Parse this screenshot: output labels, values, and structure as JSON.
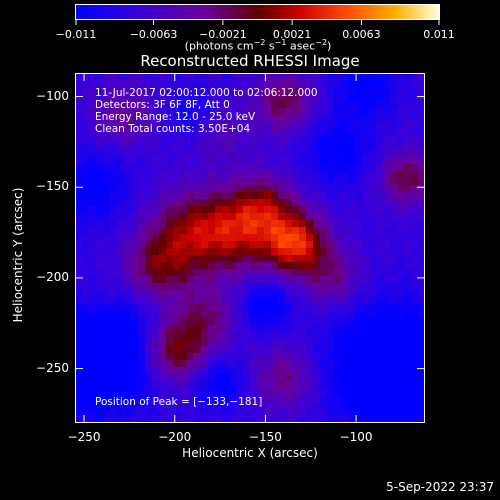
{
  "chart_data": {
    "type": "heatmap",
    "title": "Reconstructed RHESSI Image",
    "xlabel": "Heliocentric X (arcsec)",
    "ylabel": "Heliocentric Y (arcsec)",
    "xlim": [
      -255,
      -62
    ],
    "ylim": [
      -280,
      -87
    ],
    "x_ticks": [
      "−250",
      "−200",
      "−150",
      "−100"
    ],
    "x_tick_values": [
      -250,
      -200,
      -150,
      -100
    ],
    "y_ticks": [
      "−100",
      "−150",
      "−200",
      "−250"
    ],
    "y_tick_values": [
      -100,
      -150,
      -200,
      -250
    ],
    "colorbar": {
      "range": [
        -0.011,
        0.011
      ],
      "ticks": [
        "−0.011",
        "−0.0063",
        "−0.0021",
        "0.0021",
        "0.0063",
        "0.011"
      ],
      "tick_values": [
        -0.011,
        -0.0063,
        -0.0021,
        0.0021,
        0.0063,
        0.011
      ],
      "unit_prefix": "(photons cm",
      "unit_exp1": "−2",
      "unit_mid": " s",
      "unit_exp2": "−1",
      "unit_mid2": " asec",
      "unit_exp3": "−2",
      "unit_suffix": ")"
    },
    "info_lines": [
      "11-Jul-2017 02:00:12.000 to 02:06:12.000",
      "Detectors: 3F 6F 8F, Att 0",
      "Energy Range: 12.0 - 25.0 keV",
      "Clean     Total counts: 3.50E+04"
    ],
    "peak_label": "Position of Peak = [−133,−181]",
    "peak": {
      "x": -133,
      "y": -181
    },
    "sources": [
      {
        "x": -133,
        "y": -181,
        "amp": 0.011,
        "sigma": 12
      },
      {
        "x": -165,
        "y": -174,
        "amp": 0.008,
        "sigma": 16
      },
      {
        "x": -192,
        "y": -175,
        "amp": 0.0072,
        "sigma": 16
      },
      {
        "x": -210,
        "y": -195,
        "amp": 0.0062,
        "sigma": 13
      },
      {
        "x": -200,
        "y": -240,
        "amp": 0.008,
        "sigma": 12
      },
      {
        "x": -183,
        "y": -222,
        "amp": 0.005,
        "sigma": 12
      },
      {
        "x": -150,
        "y": -160,
        "amp": 0.0055,
        "sigma": 12
      },
      {
        "x": -113,
        "y": -200,
        "amp": 0.0045,
        "sigma": 11
      },
      {
        "x": -140,
        "y": -103,
        "amp": 0.0062,
        "sigma": 11
      },
      {
        "x": -72,
        "y": -145,
        "amp": 0.0065,
        "sigma": 10
      },
      {
        "x": -228,
        "y": -110,
        "amp": 0.004,
        "sigma": 12
      },
      {
        "x": -140,
        "y": -255,
        "amp": 0.0048,
        "sigma": 12
      },
      {
        "x": -245,
        "y": -215,
        "amp": 0.003,
        "sigma": 12
      },
      {
        "x": -175,
        "y": -120,
        "amp": 0.0025,
        "sigma": 12
      }
    ],
    "negatives": [
      {
        "x": -245,
        "y": -240,
        "amp": -0.0095,
        "sigma": 22
      },
      {
        "x": -80,
        "y": -250,
        "amp": -0.0095,
        "sigma": 22
      },
      {
        "x": -175,
        "y": -258,
        "amp": -0.004,
        "sigma": 10
      },
      {
        "x": -110,
        "y": -130,
        "amp": -0.004,
        "sigma": 13
      },
      {
        "x": -190,
        "y": -110,
        "amp": -0.0025,
        "sigma": 10
      },
      {
        "x": -150,
        "y": -215,
        "amp": -0.0045,
        "sigma": 10
      },
      {
        "x": -245,
        "y": -150,
        "amp": -0.004,
        "sigma": 14
      },
      {
        "x": -95,
        "y": -95,
        "amp": -0.004,
        "sigma": 12
      }
    ],
    "background": -0.0075
  },
  "timestamp": "5-Sep-2022 23:37"
}
